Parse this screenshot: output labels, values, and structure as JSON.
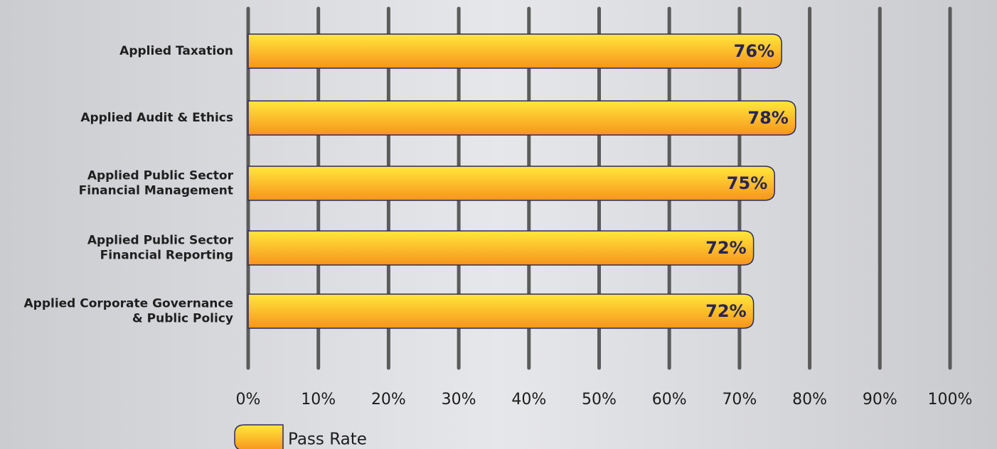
{
  "chart_data": {
    "type": "bar",
    "orientation": "horizontal",
    "categories": [
      [
        "Applied Taxation"
      ],
      [
        "Applied Audit & Ethics"
      ],
      [
        "Applied Public Sector",
        "Financial Management"
      ],
      [
        "Applied Public Sector",
        "Financial Reporting"
      ],
      [
        "Applied Corporate Governance",
        "& Public Policy"
      ]
    ],
    "series": [
      {
        "name": "Pass Rate",
        "values": [
          76,
          78,
          75,
          72,
          72
        ],
        "value_labels": [
          "76%",
          "78%",
          "75%",
          "72%",
          "72%"
        ]
      }
    ],
    "xlim": [
      0,
      100
    ],
    "ticks": [
      0,
      10,
      20,
      30,
      40,
      50,
      60,
      70,
      80,
      90,
      100
    ],
    "tick_labels": [
      "0%",
      "10%",
      "20%",
      "30%",
      "40%",
      "50%",
      "60%",
      "70%",
      "80%",
      "90%",
      "100%"
    ],
    "grid": true,
    "legend": "bottom-left",
    "colors": {
      "bar_top": "#ffe83a",
      "bar_bottom": "#f7941d",
      "bar_stroke": "#2e2a5e",
      "gridline": "#5b5b5b",
      "value_text": "#2a2553"
    }
  }
}
